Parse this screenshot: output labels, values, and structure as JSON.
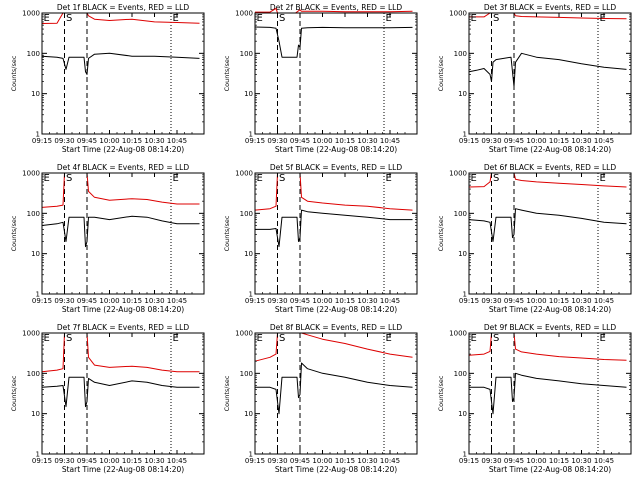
{
  "figure": {
    "xlabel": "Start Time (22-Aug-08 08:14:20)",
    "ylabel": "Counts/sec",
    "x_ticks": [
      "09:15",
      "09:30",
      "09:45",
      "10:00",
      "10:15",
      "10:30",
      "10:45"
    ],
    "y_ticks": [
      "1",
      "10",
      "100",
      "1000"
    ],
    "marker_labels": {
      "E": "E",
      "S": "S"
    },
    "colors": {
      "events": "#000000",
      "lld": "#dd0000",
      "axis": "#000000"
    }
  },
  "chart_data": [
    {
      "type": "line",
      "title": "Det 1f BLACK = Events, RED = LLD",
      "xlabel": "Start Time (22-Aug-08 08:14:20)",
      "ylabel": "Counts/sec",
      "y_scale": "log",
      "ylim": [
        1,
        1000
      ],
      "x_range_minutes": [
        -15,
        93
      ],
      "x_ticks": [
        "09:15",
        "09:30",
        "09:45",
        "10:00",
        "10:15",
        "10:30",
        "10:45"
      ],
      "dashed_lines_minutes": [
        0,
        15
      ],
      "dotted_lines_minutes": [
        -15,
        71,
        93
      ],
      "marker_labels": [
        {
          "text": "E",
          "x_minutes": -14
        },
        {
          "text": "S",
          "x_minutes": 1
        },
        {
          "text": "E",
          "x_minutes": 72
        }
      ],
      "series": [
        {
          "name": "LLD",
          "color": "#dd0000",
          "x": [
            -15,
            -5,
            -1,
            0,
            1,
            3,
            13,
            15,
            16,
            20,
            30,
            45,
            60,
            75,
            90
          ],
          "values": [
            550,
            560,
            1000,
            1000,
            1000,
            1000,
            1000,
            1000,
            850,
            700,
            650,
            700,
            600,
            580,
            560
          ]
        },
        {
          "name": "Events",
          "color": "#000000",
          "x": [
            -15,
            -5,
            -1,
            1,
            3,
            13,
            14,
            15,
            16,
            20,
            30,
            45,
            60,
            75,
            90
          ],
          "values": [
            85,
            80,
            75,
            40,
            80,
            80,
            35,
            30,
            75,
            95,
            100,
            85,
            85,
            80,
            75
          ]
        }
      ]
    },
    {
      "type": "line",
      "title": "Det 2f BLACK = Events, RED = LLD",
      "xlabel": "Start Time (22-Aug-08 08:14:20)",
      "ylabel": "Counts/sec",
      "y_scale": "log",
      "ylim": [
        1,
        1000
      ],
      "x_range_minutes": [
        -15,
        93
      ],
      "x_ticks": [
        "09:15",
        "09:30",
        "09:45",
        "10:00",
        "10:15",
        "10:30",
        "10:45"
      ],
      "dashed_lines_minutes": [
        0,
        15
      ],
      "dotted_lines_minutes": [
        -15,
        71,
        93
      ],
      "marker_labels": [
        {
          "text": "E",
          "x_minutes": -14
        },
        {
          "text": "S",
          "x_minutes": 1
        },
        {
          "text": "E",
          "x_minutes": 72
        }
      ],
      "series": [
        {
          "name": "LLD",
          "color": "#dd0000",
          "x": [
            -15,
            -5,
            -1,
            0,
            1,
            3,
            5,
            12,
            15,
            16,
            30,
            45,
            60,
            75,
            90
          ],
          "values": [
            1050,
            1050,
            1300,
            1000,
            1000,
            1000,
            1000,
            1000,
            1200,
            1100,
            1100,
            1080,
            1080,
            1080,
            1100
          ]
        },
        {
          "name": "Events",
          "color": "#000000",
          "x": [
            -15,
            -5,
            -1,
            1,
            3,
            13,
            14,
            15,
            16,
            20,
            30,
            45,
            60,
            75,
            90
          ],
          "values": [
            450,
            440,
            420,
            200,
            80,
            80,
            160,
            140,
            420,
            430,
            440,
            430,
            430,
            430,
            440
          ]
        }
      ]
    },
    {
      "type": "line",
      "title": "Det 3f BLACK = Events, RED = LLD",
      "xlabel": "Start Time (22-Aug-08 08:14:20)",
      "ylabel": "Counts/sec",
      "y_scale": "log",
      "ylim": [
        1,
        1000
      ],
      "x_range_minutes": [
        -15,
        93
      ],
      "x_ticks": [
        "09:15",
        "09:30",
        "09:45",
        "10:00",
        "10:15",
        "10:30",
        "10:45"
      ],
      "dashed_lines_minutes": [
        0,
        15
      ],
      "dotted_lines_minutes": [
        -15,
        71,
        93
      ],
      "marker_labels": [
        {
          "text": "E",
          "x_minutes": -14
        },
        {
          "text": "S",
          "x_minutes": 1
        },
        {
          "text": "E",
          "x_minutes": 72
        }
      ],
      "series": [
        {
          "name": "LLD",
          "color": "#dd0000",
          "x": [
            -15,
            -5,
            -1,
            0,
            1,
            3,
            13,
            15,
            16,
            20,
            30,
            45,
            60,
            75,
            90
          ],
          "values": [
            800,
            800,
            1000,
            1000,
            1000,
            1000,
            1000,
            1000,
            850,
            820,
            800,
            780,
            750,
            730,
            720
          ]
        },
        {
          "name": "Events",
          "color": "#000000",
          "x": [
            -15,
            -10,
            -5,
            -1,
            0,
            1,
            3,
            13,
            15,
            16,
            20,
            30,
            45,
            60,
            75,
            90
          ],
          "values": [
            35,
            38,
            42,
            30,
            20,
            60,
            70,
            80,
            15,
            60,
            100,
            80,
            70,
            55,
            45,
            40
          ]
        }
      ]
    },
    {
      "type": "line",
      "title": "Det 4f BLACK = Events, RED = LLD",
      "xlabel": "Start Time (22-Aug-08 08:14:20)",
      "ylabel": "Counts/sec",
      "y_scale": "log",
      "ylim": [
        1,
        1000
      ],
      "x_range_minutes": [
        -15,
        93
      ],
      "x_ticks": [
        "09:15",
        "09:30",
        "09:45",
        "10:00",
        "10:15",
        "10:30",
        "10:45"
      ],
      "dashed_lines_minutes": [
        0,
        15
      ],
      "dotted_lines_minutes": [
        -15,
        71,
        93
      ],
      "marker_labels": [
        {
          "text": "E",
          "x_minutes": -14
        },
        {
          "text": "S",
          "x_minutes": 1
        },
        {
          "text": "E",
          "x_minutes": 72
        }
      ],
      "series": [
        {
          "name": "LLD",
          "color": "#dd0000",
          "x": [
            -15,
            -5,
            -1,
            0,
            1,
            3,
            13,
            15,
            16,
            20,
            30,
            45,
            55,
            65,
            75,
            90
          ],
          "values": [
            140,
            150,
            160,
            1000,
            1000,
            1000,
            1000,
            1000,
            350,
            250,
            210,
            230,
            220,
            190,
            170,
            170
          ]
        },
        {
          "name": "Events",
          "color": "#000000",
          "x": [
            -15,
            -5,
            -1,
            1,
            3,
            13,
            14,
            15,
            16,
            20,
            30,
            45,
            55,
            65,
            75,
            90
          ],
          "values": [
            50,
            55,
            60,
            20,
            80,
            80,
            15,
            20,
            80,
            80,
            70,
            85,
            80,
            65,
            55,
            55
          ]
        }
      ]
    },
    {
      "type": "line",
      "title": "Det 5f BLACK = Events, RED = LLD",
      "xlabel": "Start Time (22-Aug-08 08:14:20)",
      "ylabel": "Counts/sec",
      "y_scale": "log",
      "ylim": [
        1,
        1000
      ],
      "x_range_minutes": [
        -15,
        93
      ],
      "x_ticks": [
        "09:15",
        "09:30",
        "09:45",
        "10:00",
        "10:15",
        "10:30",
        "10:45"
      ],
      "dashed_lines_minutes": [
        0,
        15
      ],
      "dotted_lines_minutes": [
        -15,
        71,
        93
      ],
      "marker_labels": [
        {
          "text": "E",
          "x_minutes": -14
        },
        {
          "text": "S",
          "x_minutes": 1
        },
        {
          "text": "E",
          "x_minutes": 72
        }
      ],
      "series": [
        {
          "name": "LLD",
          "color": "#dd0000",
          "x": [
            -15,
            -5,
            -1,
            0,
            1,
            3,
            13,
            15,
            16,
            20,
            30,
            45,
            60,
            75,
            90
          ],
          "values": [
            120,
            130,
            150,
            1000,
            1000,
            1000,
            1000,
            1000,
            250,
            200,
            180,
            160,
            150,
            130,
            120
          ]
        },
        {
          "name": "Events",
          "color": "#000000",
          "x": [
            -15,
            -5,
            -1,
            1,
            3,
            13,
            14,
            15,
            16,
            20,
            30,
            45,
            60,
            75,
            90
          ],
          "values": [
            40,
            40,
            42,
            15,
            80,
            80,
            20,
            25,
            120,
            110,
            100,
            90,
            80,
            70,
            70
          ]
        }
      ]
    },
    {
      "type": "line",
      "title": "Det 6f BLACK = Events, RED = LLD",
      "xlabel": "Start Time (22-Aug-08 08:14:20)",
      "ylabel": "Counts/sec",
      "y_scale": "log",
      "ylim": [
        1,
        1000
      ],
      "x_range_minutes": [
        -15,
        93
      ],
      "x_ticks": [
        "09:15",
        "09:30",
        "09:45",
        "10:00",
        "10:15",
        "10:30",
        "10:45"
      ],
      "dashed_lines_minutes": [
        0,
        15
      ],
      "dotted_lines_minutes": [
        -15,
        71,
        93
      ],
      "marker_labels": [
        {
          "text": "E",
          "x_minutes": -14
        },
        {
          "text": "S",
          "x_minutes": 1
        },
        {
          "text": "E",
          "x_minutes": 72
        }
      ],
      "series": [
        {
          "name": "LLD",
          "color": "#dd0000",
          "x": [
            -15,
            -5,
            -1,
            0,
            1,
            3,
            13,
            15,
            16,
            20,
            30,
            45,
            60,
            75,
            90
          ],
          "values": [
            450,
            460,
            600,
            1000,
            1000,
            1000,
            1000,
            1000,
            700,
            650,
            600,
            560,
            520,
            480,
            450
          ]
        },
        {
          "name": "Events",
          "color": "#000000",
          "x": [
            -15,
            -5,
            -1,
            1,
            3,
            13,
            14,
            15,
            16,
            20,
            30,
            45,
            60,
            75,
            90
          ],
          "values": [
            70,
            65,
            60,
            20,
            80,
            80,
            25,
            30,
            130,
            120,
            100,
            90,
            75,
            60,
            55
          ]
        }
      ]
    },
    {
      "type": "line",
      "title": "Det 7f BLACK = Events, RED = LLD",
      "xlabel": "Start Time (22-Aug-08 08:14:20)",
      "ylabel": "Counts/sec",
      "y_scale": "log",
      "ylim": [
        1,
        1000
      ],
      "x_range_minutes": [
        -15,
        93
      ],
      "x_ticks": [
        "09:15",
        "09:30",
        "09:45",
        "10:00",
        "10:15",
        "10:30",
        "10:45"
      ],
      "dashed_lines_minutes": [
        0,
        15
      ],
      "dotted_lines_minutes": [
        -15,
        71,
        93
      ],
      "marker_labels": [
        {
          "text": "E",
          "x_minutes": -14
        },
        {
          "text": "S",
          "x_minutes": 1
        },
        {
          "text": "E",
          "x_minutes": 72
        }
      ],
      "series": [
        {
          "name": "LLD",
          "color": "#dd0000",
          "x": [
            -15,
            -5,
            -1,
            0,
            1,
            3,
            13,
            15,
            16,
            20,
            30,
            45,
            55,
            65,
            75,
            90
          ],
          "values": [
            110,
            120,
            130,
            1000,
            1000,
            1000,
            1000,
            1000,
            250,
            160,
            140,
            150,
            140,
            120,
            110,
            110
          ]
        },
        {
          "name": "Events",
          "color": "#000000",
          "x": [
            -15,
            -5,
            -1,
            1,
            3,
            13,
            14,
            15,
            16,
            20,
            30,
            45,
            55,
            65,
            75,
            90
          ],
          "values": [
            45,
            48,
            50,
            15,
            80,
            80,
            15,
            20,
            75,
            60,
            50,
            65,
            60,
            50,
            45,
            45
          ]
        }
      ]
    },
    {
      "type": "line",
      "title": "Det 8f BLACK = Events, RED = LLD",
      "xlabel": "Start Time (22-Aug-08 08:14:20)",
      "ylabel": "Counts/sec",
      "y_scale": "log",
      "ylim": [
        1,
        1000
      ],
      "x_range_minutes": [
        -15,
        93
      ],
      "x_ticks": [
        "09:15",
        "09:30",
        "09:45",
        "10:00",
        "10:15",
        "10:30",
        "10:45"
      ],
      "dashed_lines_minutes": [
        0,
        15
      ],
      "dotted_lines_minutes": [
        -15,
        71,
        93
      ],
      "marker_labels": [
        {
          "text": "E",
          "x_minutes": -14
        },
        {
          "text": "S",
          "x_minutes": 1
        },
        {
          "text": "E",
          "x_minutes": 72
        }
      ],
      "series": [
        {
          "name": "LLD",
          "color": "#dd0000",
          "x": [
            -15,
            -5,
            -1,
            0,
            1,
            3,
            13,
            15,
            16,
            20,
            30,
            45,
            60,
            75,
            90
          ],
          "values": [
            200,
            250,
            300,
            1000,
            1000,
            1000,
            1000,
            1000,
            1000,
            900,
            700,
            550,
            400,
            300,
            250
          ]
        },
        {
          "name": "Events",
          "color": "#000000",
          "x": [
            -15,
            -5,
            -1,
            1,
            3,
            13,
            14,
            15,
            16,
            20,
            30,
            45,
            60,
            75,
            90
          ],
          "values": [
            45,
            45,
            40,
            10,
            80,
            80,
            25,
            30,
            180,
            130,
            100,
            80,
            60,
            50,
            45
          ]
        }
      ]
    },
    {
      "type": "line",
      "title": "Det 9f BLACK = Events, RED = LLD",
      "xlabel": "Start Time (22-Aug-08 08:14:20)",
      "ylabel": "Counts/sec",
      "y_scale": "log",
      "ylim": [
        1,
        1000
      ],
      "x_range_minutes": [
        -15,
        93
      ],
      "x_ticks": [
        "09:15",
        "09:30",
        "09:45",
        "10:00",
        "10:15",
        "10:30",
        "10:45"
      ],
      "dashed_lines_minutes": [
        0,
        15
      ],
      "dotted_lines_minutes": [
        -15,
        71,
        93
      ],
      "marker_labels": [
        {
          "text": "E",
          "x_minutes": -14
        },
        {
          "text": "S",
          "x_minutes": 1
        },
        {
          "text": "E",
          "x_minutes": 72
        }
      ],
      "series": [
        {
          "name": "LLD",
          "color": "#dd0000",
          "x": [
            -15,
            -5,
            -1,
            0,
            1,
            3,
            13,
            15,
            16,
            20,
            30,
            45,
            60,
            75,
            90
          ],
          "values": [
            280,
            300,
            350,
            1000,
            1000,
            1000,
            1000,
            1000,
            400,
            340,
            300,
            260,
            240,
            220,
            210
          ]
        },
        {
          "name": "Events",
          "color": "#000000",
          "x": [
            -15,
            -5,
            -1,
            1,
            3,
            13,
            14,
            15,
            16,
            20,
            30,
            45,
            60,
            75,
            90
          ],
          "values": [
            45,
            45,
            40,
            10,
            80,
            80,
            20,
            25,
            100,
            90,
            75,
            65,
            55,
            50,
            45
          ]
        }
      ]
    }
  ]
}
